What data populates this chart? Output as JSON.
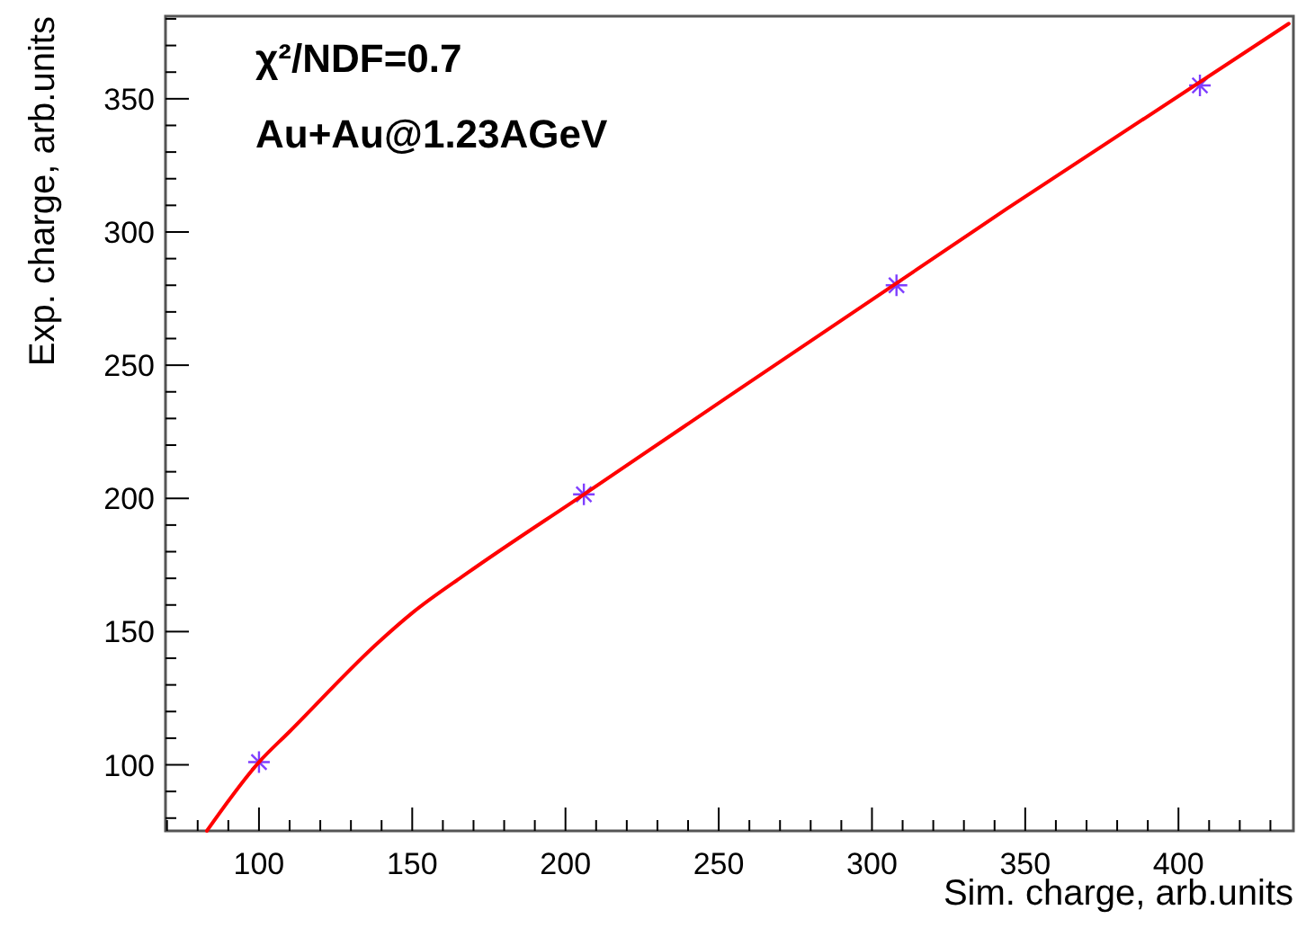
{
  "chart_data": {
    "type": "scatter",
    "xlabel": "Sim. charge, arb.units",
    "ylabel": "Exp. charge, arb.units",
    "annotations": [
      "χ²/NDF=0.7",
      "Au+Au@1.23AGeV"
    ],
    "xlim": [
      69.5,
      437.5
    ],
    "ylim": [
      75.2,
      381
    ],
    "xticks": [
      {
        "value": 70,
        "label": null
      },
      {
        "value": 80,
        "label": null
      },
      {
        "value": 90,
        "label": null
      },
      100,
      {
        "value": 110,
        "label": null
      },
      {
        "value": 120,
        "label": null
      },
      {
        "value": 130,
        "label": null
      },
      {
        "value": 140,
        "label": null
      },
      150,
      {
        "value": 160,
        "label": null
      },
      {
        "value": 170,
        "label": null
      },
      {
        "value": 180,
        "label": null
      },
      {
        "value": 190,
        "label": null
      },
      200,
      {
        "value": 210,
        "label": null
      },
      {
        "value": 220,
        "label": null
      },
      {
        "value": 230,
        "label": null
      },
      {
        "value": 240,
        "label": null
      },
      250,
      {
        "value": 260,
        "label": null
      },
      {
        "value": 270,
        "label": null
      },
      {
        "value": 280,
        "label": null
      },
      {
        "value": 290,
        "label": null
      },
      300,
      {
        "value": 310,
        "label": null
      },
      {
        "value": 320,
        "label": null
      },
      {
        "value": 330,
        "label": null
      },
      {
        "value": 340,
        "label": null
      },
      350,
      {
        "value": 360,
        "label": null
      },
      {
        "value": 370,
        "label": null
      },
      {
        "value": 380,
        "label": null
      },
      {
        "value": 390,
        "label": null
      },
      400,
      {
        "value": 410,
        "label": null
      },
      {
        "value": 420,
        "label": null
      },
      {
        "value": 430,
        "label": null
      }
    ],
    "yticks": [
      {
        "value": 80,
        "label": null
      },
      {
        "value": 90,
        "label": null
      },
      100,
      {
        "value": 110,
        "label": null
      },
      {
        "value": 120,
        "label": null
      },
      {
        "value": 130,
        "label": null
      },
      {
        "value": 140,
        "label": null
      },
      150,
      {
        "value": 160,
        "label": null
      },
      {
        "value": 170,
        "label": null
      },
      {
        "value": 180,
        "label": null
      },
      {
        "value": 190,
        "label": null
      },
      200,
      {
        "value": 210,
        "label": null
      },
      {
        "value": 220,
        "label": null
      },
      {
        "value": 230,
        "label": null
      },
      {
        "value": 240,
        "label": null
      },
      250,
      {
        "value": 260,
        "label": null
      },
      {
        "value": 270,
        "label": null
      },
      {
        "value": 280,
        "label": null
      },
      {
        "value": 290,
        "label": null
      },
      300,
      {
        "value": 310,
        "label": null
      },
      {
        "value": 320,
        "label": null
      },
      {
        "value": 330,
        "label": null
      },
      {
        "value": 340,
        "label": null
      },
      350,
      {
        "value": 360,
        "label": null
      },
      {
        "value": 370,
        "label": null
      },
      {
        "value": 380,
        "label": null
      }
    ],
    "grid": false,
    "series": [
      {
        "color": "#7f3fff",
        "marker": "cross",
        "x": [
          100,
          206,
          308,
          407
        ],
        "values": [
          101,
          201.5,
          280,
          355
        ]
      },
      {
        "type": "line",
        "color": "#ff0000",
        "marker": "none",
        "line_style": "solid",
        "x": [
          83,
          100,
          110,
          139,
          150,
          168,
          206,
          344,
          436
        ],
        "values": [
          75.2,
          101,
          112.5,
          146,
          157,
          172,
          201.5,
          308.7,
          378.2
        ]
      }
    ]
  }
}
